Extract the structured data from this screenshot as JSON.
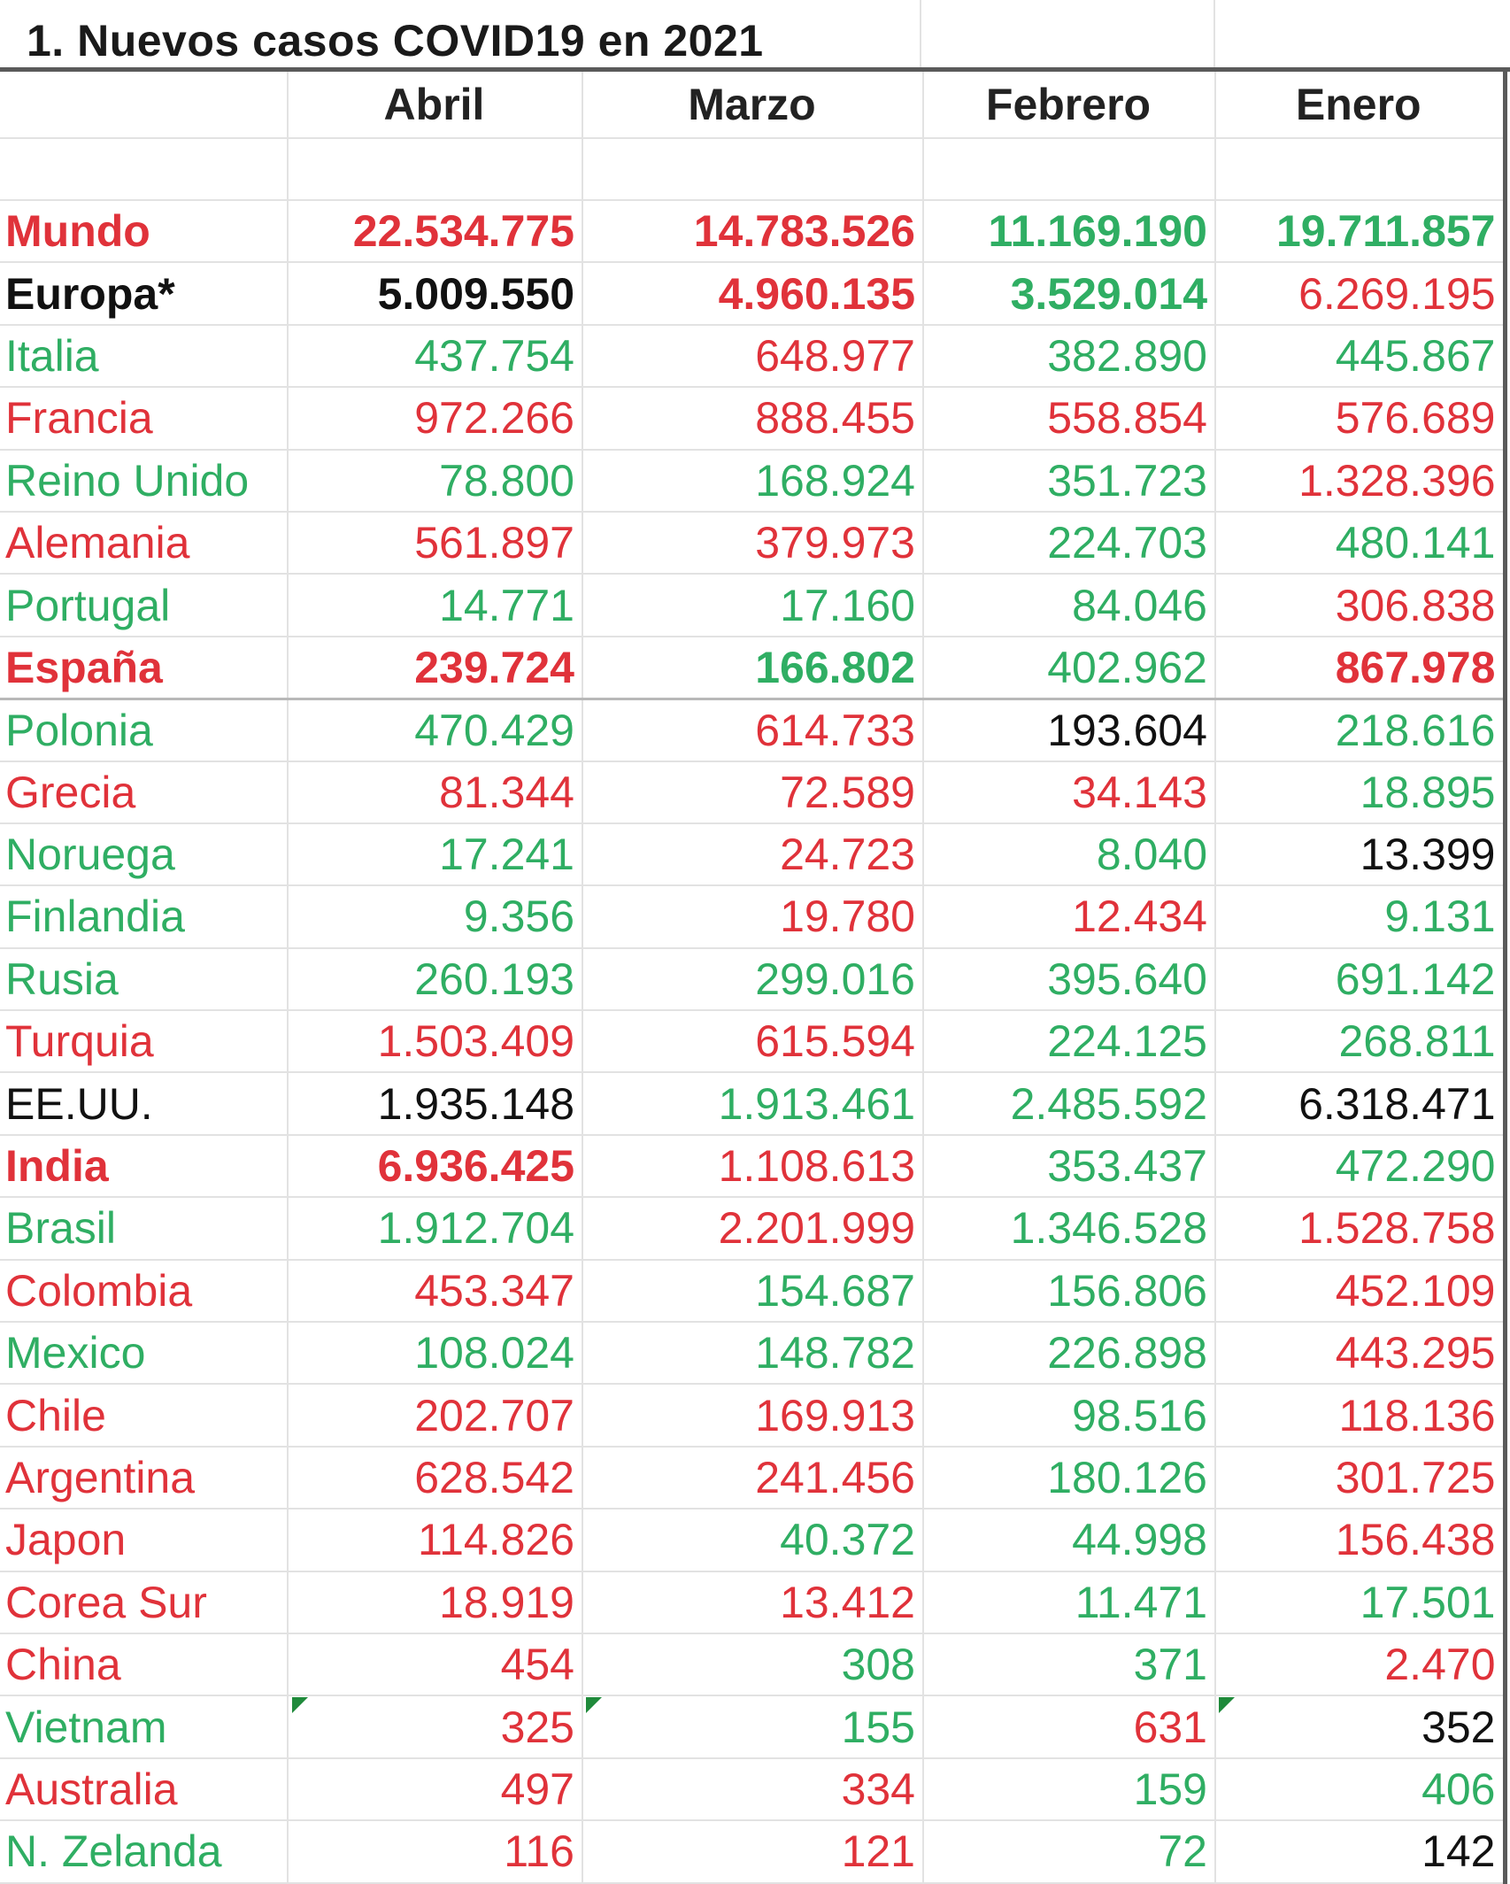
{
  "title": "1. Nuevos casos COVID19 en 2021",
  "columns": [
    "Abril",
    "Marzo",
    "Febrero",
    "Enero"
  ],
  "colors": {
    "red": "#e0323a",
    "green": "#2fae63",
    "black": "#111111"
  },
  "rows": [
    {
      "name": "Mundo",
      "values": [
        "22.534.775",
        "14.783.526",
        "11.169.190",
        "19.711.857"
      ]
    },
    {
      "name": "Europa*",
      "values": [
        "5.009.550",
        "4.960.135",
        "3.529.014",
        "6.269.195"
      ]
    },
    {
      "name": "Italia",
      "values": [
        "437.754",
        "648.977",
        "382.890",
        "445.867"
      ]
    },
    {
      "name": "Francia",
      "values": [
        "972.266",
        "888.455",
        "558.854",
        "576.689"
      ]
    },
    {
      "name": "Reino Unido",
      "values": [
        "78.800",
        "168.924",
        "351.723",
        "1.328.396"
      ]
    },
    {
      "name": "Alemania",
      "values": [
        "561.897",
        "379.973",
        "224.703",
        "480.141"
      ]
    },
    {
      "name": "Portugal",
      "values": [
        "14.771",
        "17.160",
        "84.046",
        "306.838"
      ]
    },
    {
      "name": "España",
      "values": [
        "239.724",
        "166.802",
        "402.962",
        "867.978"
      ]
    },
    {
      "name": "Polonia",
      "values": [
        "470.429",
        "614.733",
        "193.604",
        "218.616"
      ]
    },
    {
      "name": "Grecia",
      "values": [
        "81.344",
        "72.589",
        "34.143",
        "18.895"
      ]
    },
    {
      "name": "Noruega",
      "values": [
        "17.241",
        "24.723",
        "8.040",
        "13.399"
      ]
    },
    {
      "name": "Finlandia",
      "values": [
        "9.356",
        "19.780",
        "12.434",
        "9.131"
      ]
    },
    {
      "name": "Rusia",
      "values": [
        "260.193",
        "299.016",
        "395.640",
        "691.142"
      ]
    },
    {
      "name": "Turquia",
      "values": [
        "1.503.409",
        "615.594",
        "224.125",
        "268.811"
      ]
    },
    {
      "name": "EE.UU.",
      "values": [
        "1.935.148",
        "1.913.461",
        "2.485.592",
        "6.318.471"
      ]
    },
    {
      "name": "India",
      "values": [
        "6.936.425",
        "1.108.613",
        "353.437",
        "472.290"
      ]
    },
    {
      "name": "Brasil",
      "values": [
        "1.912.704",
        "2.201.999",
        "1.346.528",
        "1.528.758"
      ]
    },
    {
      "name": "Colombia",
      "values": [
        "453.347",
        "154.687",
        "156.806",
        "452.109"
      ]
    },
    {
      "name": "Mexico",
      "values": [
        "108.024",
        "148.782",
        "226.898",
        "443.295"
      ]
    },
    {
      "name": "Chile",
      "values": [
        "202.707",
        "169.913",
        "98.516",
        "118.136"
      ]
    },
    {
      "name": "Argentina",
      "values": [
        "628.542",
        "241.456",
        "180.126",
        "301.725"
      ]
    },
    {
      "name": "Japon",
      "values": [
        "114.826",
        "40.372",
        "44.998",
        "156.438"
      ]
    },
    {
      "name": "Corea Sur",
      "values": [
        "18.919",
        "13.412",
        "11.471",
        "17.501"
      ]
    },
    {
      "name": "China",
      "values": [
        "454",
        "308",
        "371",
        "2.470"
      ]
    },
    {
      "name": "Vietnam",
      "values": [
        "325",
        "155",
        "631",
        "352"
      ]
    },
    {
      "name": "Australia",
      "values": [
        "497",
        "334",
        "159",
        "406"
      ]
    },
    {
      "name": "N. Zelanda",
      "values": [
        "116",
        "121",
        "72",
        "142"
      ]
    }
  ]
}
